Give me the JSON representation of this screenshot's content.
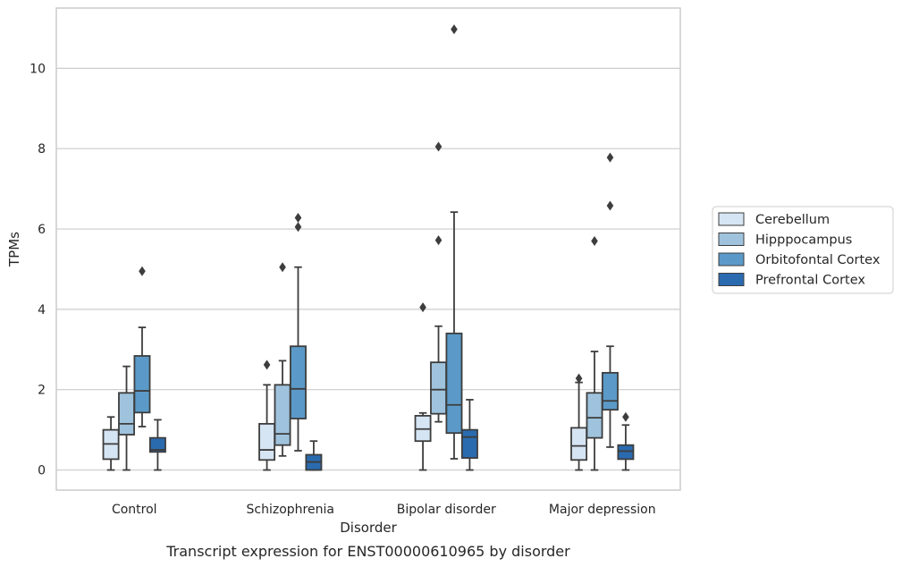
{
  "chart_data": {
    "type": "box",
    "xlabel": "Disorder",
    "ylabel": "TPMs",
    "caption": "Transcript expression for ENST00000610965 by disorder",
    "ylim": [
      -0.5,
      11.5
    ],
    "yticks": [
      "0",
      "2",
      "4",
      "6",
      "8",
      "10"
    ],
    "grid": "horizontal",
    "legend_position": "right",
    "categories": [
      "Control",
      "Schizophrenia",
      "Bipolar disorder",
      "Major depression"
    ],
    "series": [
      {
        "name": "Cerebellum",
        "color": "#d6e5f3",
        "boxes": [
          {
            "whisker_low": 0.0,
            "q1": 0.27,
            "median": 0.65,
            "q3": 1.0,
            "whisker_high": 1.32,
            "outliers": []
          },
          {
            "whisker_low": 0.0,
            "q1": 0.25,
            "median": 0.5,
            "q3": 1.15,
            "whisker_high": 2.12,
            "outliers": [
              2.62
            ]
          },
          {
            "whisker_low": 0.0,
            "q1": 0.72,
            "median": 1.02,
            "q3": 1.35,
            "whisker_high": 1.42,
            "outliers": [
              4.05
            ]
          },
          {
            "whisker_low": 0.0,
            "q1": 0.25,
            "median": 0.6,
            "q3": 1.05,
            "whisker_high": 2.18,
            "outliers": [
              2.28
            ]
          }
        ]
      },
      {
        "name": "Hipppocampus",
        "color": "#9fc3dd",
        "boxes": [
          {
            "whisker_low": 0.0,
            "q1": 0.88,
            "median": 1.15,
            "q3": 1.92,
            "whisker_high": 2.58,
            "outliers": []
          },
          {
            "whisker_low": 0.35,
            "q1": 0.62,
            "median": 0.9,
            "q3": 2.12,
            "whisker_high": 2.72,
            "outliers": [
              5.05
            ]
          },
          {
            "whisker_low": 1.2,
            "q1": 1.4,
            "median": 2.0,
            "q3": 2.68,
            "whisker_high": 3.58,
            "outliers": [
              5.72,
              8.05
            ]
          },
          {
            "whisker_low": 0.0,
            "q1": 0.8,
            "median": 1.3,
            "q3": 1.92,
            "whisker_high": 2.95,
            "outliers": [
              5.7
            ]
          }
        ]
      },
      {
        "name": "Orbitofontal Cortex",
        "color": "#5b9ac8",
        "boxes": [
          {
            "whisker_low": 1.08,
            "q1": 1.43,
            "median": 1.97,
            "q3": 2.84,
            "whisker_high": 3.55,
            "outliers": [
              4.95
            ]
          },
          {
            "whisker_low": 0.48,
            "q1": 1.28,
            "median": 2.02,
            "q3": 3.08,
            "whisker_high": 5.05,
            "outliers": [
              6.05,
              6.28
            ]
          },
          {
            "whisker_low": 0.28,
            "q1": 0.92,
            "median": 1.62,
            "q3": 3.4,
            "whisker_high": 6.42,
            "outliers": [
              10.97
            ]
          },
          {
            "whisker_low": 0.57,
            "q1": 1.5,
            "median": 1.72,
            "q3": 2.42,
            "whisker_high": 3.08,
            "outliers": [
              6.58,
              7.78
            ]
          }
        ]
      },
      {
        "name": "Prefrontal Cortex",
        "color": "#2a6bb0",
        "boxes": [
          {
            "whisker_low": 0.0,
            "q1": 0.45,
            "median": 0.5,
            "q3": 0.8,
            "whisker_high": 1.25,
            "outliers": []
          },
          {
            "whisker_low": 0.0,
            "q1": 0.0,
            "median": 0.2,
            "q3": 0.38,
            "whisker_high": 0.72,
            "outliers": []
          },
          {
            "whisker_low": 0.0,
            "q1": 0.3,
            "median": 0.82,
            "q3": 1.0,
            "whisker_high": 1.75,
            "outliers": []
          },
          {
            "whisker_low": 0.0,
            "q1": 0.27,
            "median": 0.47,
            "q3": 0.62,
            "whisker_high": 1.12,
            "outliers": [
              1.32
            ]
          }
        ]
      }
    ]
  }
}
